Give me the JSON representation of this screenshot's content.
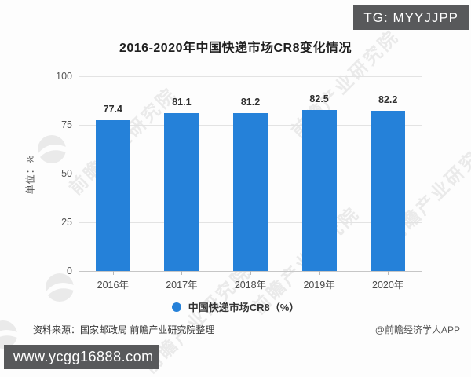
{
  "badge": {
    "label": "TG: MYYJJPP"
  },
  "title": "2016-2020年中国快递市场CR8变化情况",
  "chart_data": {
    "type": "bar",
    "title": "2016-2020年中国快递市场CR8变化情况",
    "categories": [
      "2016年",
      "2017年",
      "2018年",
      "2019年",
      "2020年"
    ],
    "values": [
      77.4,
      81.1,
      81.2,
      82.5,
      82.2
    ],
    "data_labels": [
      "77.4",
      "81.1",
      "81.2",
      "82.5",
      "82.2"
    ],
    "series_name": "中国快递市场CR8（%）",
    "xlabel": "",
    "ylabel": "单位：%",
    "ylim": [
      0,
      100
    ],
    "yticks": [
      0,
      25,
      50,
      75,
      100
    ],
    "grid": true,
    "legend_position": "bottom"
  },
  "legend": {
    "label": "中国快递市场CR8（%）"
  },
  "y_axis": {
    "unit_label": "单位：%"
  },
  "footer": {
    "source": "资料来源：国家邮政局 前瞻产业研究院整理",
    "credit": "@前瞻经济学人APP"
  },
  "website_bar": {
    "url": "www.ycgg16888.com"
  },
  "watermark": {
    "text": "前瞻产业研究院"
  },
  "colors": {
    "bar": "#2581d9",
    "badge_bg": "#58595b",
    "grid": "#e3e3e3",
    "axis": "#c6c6c6"
  }
}
